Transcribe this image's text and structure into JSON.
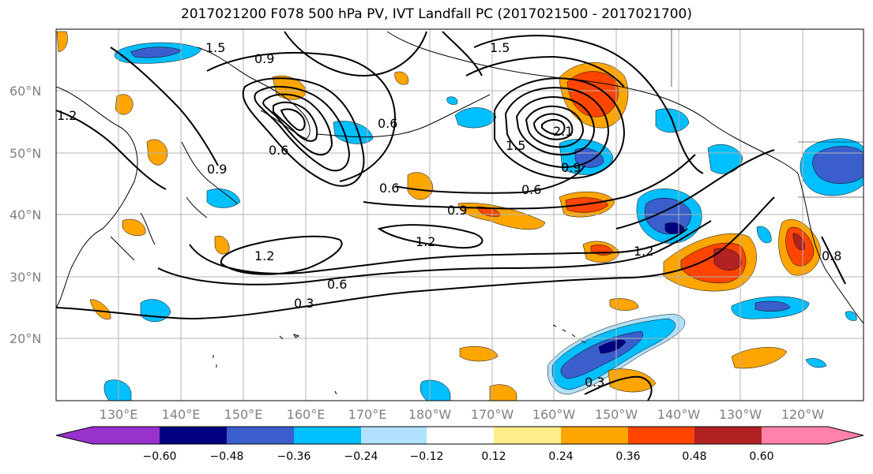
{
  "title": "2017021200 F078 500 hPa PV, IVT Landfall PC (2017021500 - 2017021700)",
  "map": {
    "lon_range": [
      120,
      250
    ],
    "lat_range": [
      10,
      70
    ],
    "lon_labels": [
      "130°E",
      "140°E",
      "150°E",
      "160°E",
      "170°E",
      "180°W",
      "170°W",
      "160°W",
      "150°W",
      "140°W",
      "130°W",
      "120°W"
    ],
    "lat_labels": [
      "20°N",
      "30°N",
      "40°N",
      "50°N",
      "60°N"
    ],
    "grid": true,
    "contour_labels": [
      "1.5",
      "0.9",
      "1.2",
      "0.6",
      "1.5",
      "0.9",
      "0.6",
      "0.9",
      "1.2",
      "1.2",
      "0.6",
      "0.3",
      "1.2",
      "0.3",
      "0.6",
      "0.9",
      "1.5",
      "2.1",
      "0.6",
      "0.8"
    ]
  },
  "colorbar": {
    "ticks": [
      "−0.60",
      "−0.48",
      "−0.36",
      "−0.24",
      "−0.12",
      "0.12",
      "0.24",
      "0.36",
      "0.48",
      "0.60"
    ],
    "colors": [
      "#9932cc",
      "#000080",
      "#3a5fcd",
      "#00bfff",
      "#b0e2ff",
      "#ffffff",
      "#ffec8b",
      "#ffa500",
      "#ff4500",
      "#b22222",
      "#ff82ab"
    ]
  },
  "shading_colors": {
    "neg_light": "#b0e2ff",
    "neg_mid": "#00bfff",
    "neg_strong": "#3a5fcd",
    "neg_max": "#000080",
    "pos_light": "#ffec8b",
    "pos_mid": "#ffa500",
    "pos_strong": "#ff4500",
    "pos_max": "#b22222"
  }
}
